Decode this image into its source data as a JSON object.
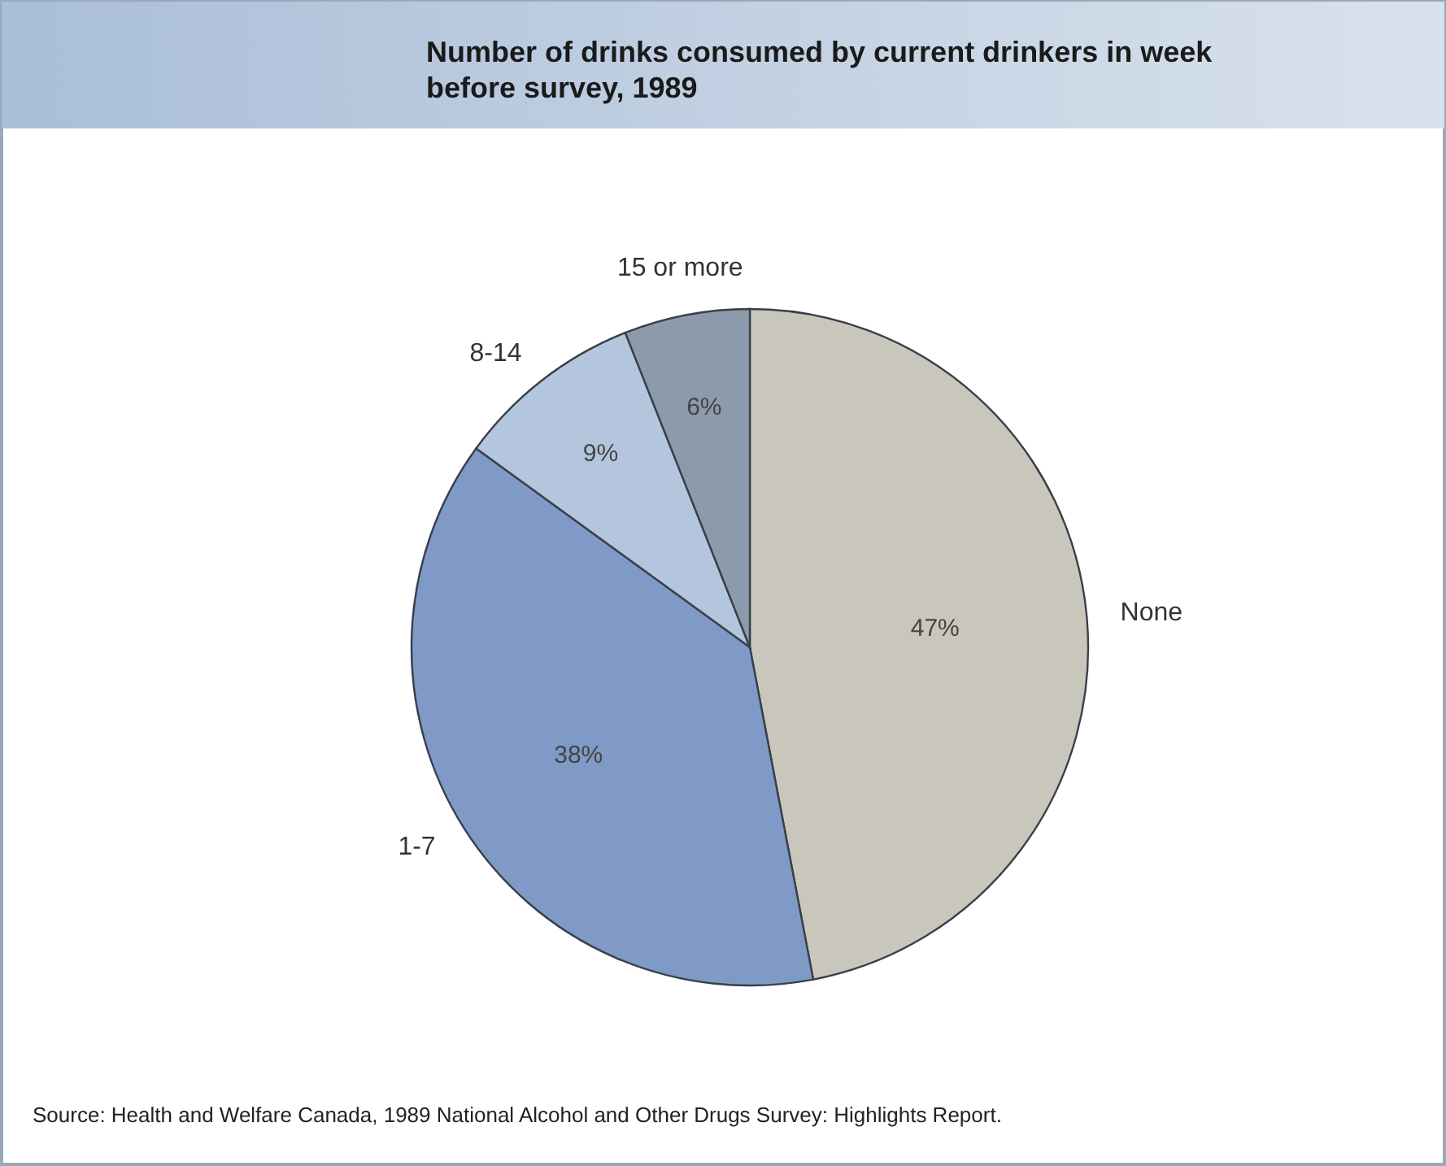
{
  "chart_data": {
    "type": "pie",
    "title": "Number of drinks consumed by current drinkers in week before survey, 1989",
    "categories": [
      "None",
      "1-7",
      "8-14",
      "15 or more"
    ],
    "values": [
      47,
      38,
      9,
      6
    ],
    "value_labels": [
      "47%",
      "38%",
      "9%",
      "6%"
    ],
    "colors": [
      "#c9c6bb",
      "#7f9ac6",
      "#b3c6de",
      "#8c9bab"
    ],
    "annotations": [
      "Source: Health and Welfare Canada, 1989 National Alcohol and Other Drugs Survey: Highlights Report."
    ]
  }
}
